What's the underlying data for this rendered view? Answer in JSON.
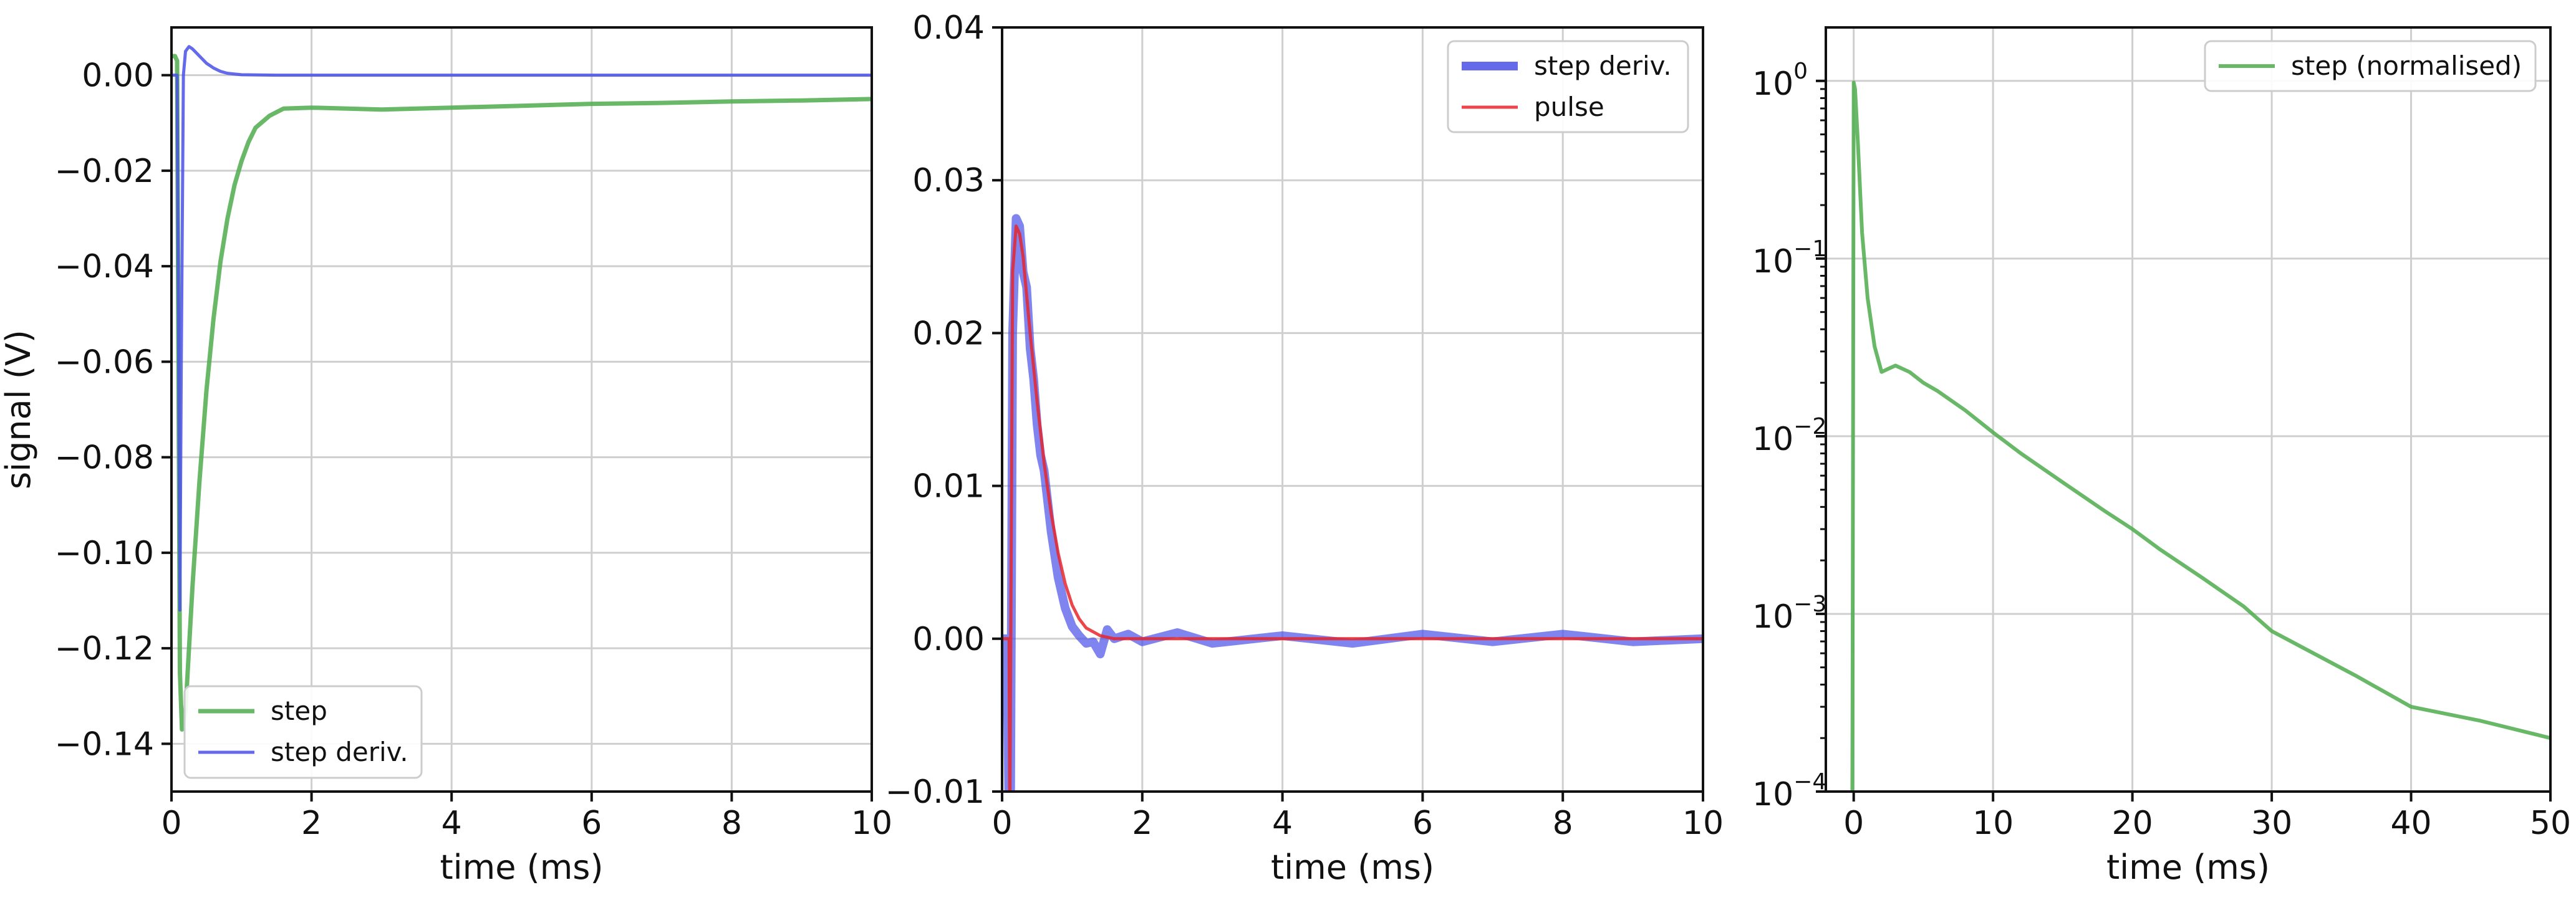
{
  "colors": {
    "step": "#4dab4d",
    "step_deriv": "#4a50e8",
    "pulse": "#e6262c",
    "grid": "#cfcfcf",
    "axis": "#111111",
    "legend_border": "#cccccc"
  },
  "chart_data": [
    {
      "type": "line",
      "xlabel": "time (ms)",
      "ylabel": "signal (V)",
      "xlim": [
        0,
        10
      ],
      "ylim": [
        -0.15,
        0.01
      ],
      "xticks": [
        0,
        2,
        4,
        6,
        8,
        10
      ],
      "xtick_labels": [
        "0",
        "2",
        "4",
        "6",
        "8",
        "10"
      ],
      "yticks": [
        -0.14,
        -0.12,
        -0.1,
        -0.08,
        -0.06,
        -0.04,
        -0.02,
        0.0
      ],
      "ytick_labels": [
        "−0.14",
        "−0.12",
        "−0.10",
        "−0.08",
        "−0.06",
        "−0.04",
        "−0.02",
        "0.00"
      ],
      "grid": true,
      "legend_position": "lower-left",
      "series": [
        {
          "name": "step",
          "color": "#4dab4d",
          "x": [
            0.0,
            0.05,
            0.08,
            0.1,
            0.12,
            0.15,
            0.2,
            0.25,
            0.3,
            0.4,
            0.5,
            0.6,
            0.7,
            0.8,
            0.9,
            1.0,
            1.1,
            1.2,
            1.4,
            1.6,
            2.0,
            3.0,
            4.0,
            5.0,
            6.0,
            7.0,
            8.0,
            9.0,
            10.0
          ],
          "y": [
            0.004,
            0.004,
            0.003,
            -0.06,
            -0.125,
            -0.137,
            -0.133,
            -0.12,
            -0.107,
            -0.085,
            -0.066,
            -0.051,
            -0.039,
            -0.03,
            -0.023,
            -0.018,
            -0.014,
            -0.011,
            -0.0085,
            -0.007,
            -0.0068,
            -0.0072,
            -0.0068,
            -0.0064,
            -0.006,
            -0.0058,
            -0.0055,
            -0.0053,
            -0.005
          ]
        },
        {
          "name": "step deriv.",
          "color": "#4a50e8",
          "x": [
            0.0,
            0.05,
            0.08,
            0.1,
            0.12,
            0.14,
            0.17,
            0.2,
            0.25,
            0.3,
            0.4,
            0.5,
            0.6,
            0.7,
            0.8,
            1.0,
            1.5,
            2.0,
            4.0,
            6.0,
            8.0,
            10.0
          ],
          "y": [
            0.0,
            0.0,
            0.0,
            -0.05,
            -0.112,
            -0.06,
            0.0,
            0.005,
            0.006,
            0.0055,
            0.004,
            0.0025,
            0.0015,
            0.0008,
            0.0004,
            0.0001,
            0.0,
            0.0,
            0.0,
            0.0,
            0.0,
            0.0
          ]
        }
      ]
    },
    {
      "type": "line",
      "xlabel": "time (ms)",
      "ylabel": "",
      "xlim": [
        0,
        10
      ],
      "ylim": [
        -0.01,
        0.04
      ],
      "xticks": [
        0,
        2,
        4,
        6,
        8,
        10
      ],
      "xtick_labels": [
        "0",
        "2",
        "4",
        "6",
        "8",
        "10"
      ],
      "yticks": [
        -0.01,
        0.0,
        0.01,
        0.02,
        0.03,
        0.04
      ],
      "ytick_labels": [
        "−0.01",
        "0.00",
        "0.01",
        "0.02",
        "0.03",
        "0.04"
      ],
      "grid": true,
      "legend_position": "top-right",
      "series": [
        {
          "name": "step deriv.",
          "color": "#4a50e8",
          "x": [
            0.0,
            0.05,
            0.08,
            0.1,
            0.12,
            0.15,
            0.2,
            0.25,
            0.3,
            0.35,
            0.4,
            0.45,
            0.5,
            0.55,
            0.6,
            0.7,
            0.8,
            0.9,
            1.0,
            1.1,
            1.2,
            1.3,
            1.4,
            1.5,
            1.6,
            1.8,
            2.0,
            2.5,
            3.0,
            4.0,
            5.0,
            6.0,
            7.0,
            8.0,
            9.0,
            10.0
          ],
          "y": [
            0.0,
            0.0,
            -0.005,
            -0.012,
            -0.012,
            0.02,
            0.0275,
            0.027,
            0.024,
            0.023,
            0.019,
            0.017,
            0.014,
            0.012,
            0.011,
            0.007,
            0.004,
            0.002,
            0.0008,
            0.0002,
            -0.0003,
            -0.0002,
            -0.001,
            0.0006,
            0.0,
            0.0003,
            -0.0002,
            0.0004,
            -0.0003,
            0.0002,
            -0.0003,
            0.0003,
            -0.0002,
            0.0003,
            -0.0002,
            0.0
          ]
        },
        {
          "name": "pulse",
          "color": "#e6262c",
          "x": [
            0.0,
            0.1,
            0.11,
            0.15,
            0.2,
            0.25,
            0.3,
            0.35,
            0.4,
            0.5,
            0.6,
            0.7,
            0.8,
            0.9,
            1.0,
            1.1,
            1.2,
            1.4,
            1.6,
            2.0,
            4.0,
            6.0,
            8.0,
            10.0
          ],
          "y": [
            0.0,
            0.0,
            -0.012,
            0.024,
            0.027,
            0.0265,
            0.025,
            0.0225,
            0.02,
            0.0155,
            0.0115,
            0.0082,
            0.0056,
            0.0036,
            0.0022,
            0.0013,
            0.0007,
            0.0002,
            0.0,
            0.0,
            0.0,
            0.0,
            0.0,
            0.0
          ]
        }
      ]
    },
    {
      "type": "line",
      "xlabel": "time (ms)",
      "ylabel": "",
      "xlim": [
        -2,
        50
      ],
      "ylim": [
        0.0001,
        2
      ],
      "yscale": "log",
      "xticks": [
        0,
        10,
        20,
        30,
        40,
        50
      ],
      "xtick_labels": [
        "0",
        "10",
        "20",
        "30",
        "40",
        "50"
      ],
      "yticks": [
        0.0001,
        0.001,
        0.01,
        0.1,
        1
      ],
      "ytick_labels": [
        {
          "base": "10",
          "exp": "−4"
        },
        {
          "base": "10",
          "exp": "−3"
        },
        {
          "base": "10",
          "exp": "−2"
        },
        {
          "base": "10",
          "exp": "−1"
        },
        {
          "base": "10",
          "exp": "0"
        }
      ],
      "grid": true,
      "legend_position": "top-right",
      "series": [
        {
          "name": "step (normalised)",
          "color": "#4dab4d",
          "x": [
            -0.2,
            -0.1,
            0.0,
            0.1,
            0.3,
            0.6,
            1.0,
            1.5,
            2.0,
            2.5,
            3.0,
            4.0,
            5.0,
            6.0,
            8.0,
            10.0,
            12.0,
            15.0,
            18.0,
            20.0,
            22.0,
            25.0,
            28.0,
            30.0,
            33.0,
            36.0,
            40.0,
            45.0,
            50.0
          ],
          "y": [
            0.0001,
            0.0001,
            0.98,
            0.9,
            0.45,
            0.14,
            0.06,
            0.032,
            0.023,
            0.024,
            0.025,
            0.023,
            0.02,
            0.018,
            0.014,
            0.0105,
            0.008,
            0.0055,
            0.0038,
            0.003,
            0.0023,
            0.0016,
            0.0011,
            0.0008,
            0.0006,
            0.00045,
            0.0003,
            0.00025,
            0.0002
          ]
        }
      ]
    }
  ]
}
